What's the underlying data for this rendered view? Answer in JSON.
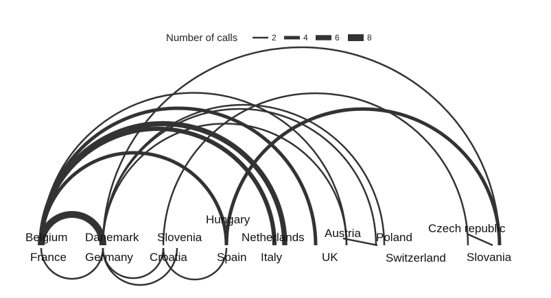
{
  "legend": {
    "title": "Number of calls",
    "entries": [
      {
        "label": "2",
        "calls": 2
      },
      {
        "label": "4",
        "calls": 4
      },
      {
        "label": "6",
        "calls": 6
      },
      {
        "label": "8",
        "calls": 8
      }
    ]
  },
  "nodes": [
    {
      "id": "belgium",
      "label": "Belgium"
    },
    {
      "id": "france",
      "label": "France"
    },
    {
      "id": "danemark",
      "label": "Danemark"
    },
    {
      "id": "germany",
      "label": "Germany"
    },
    {
      "id": "croatia",
      "label": "Croatia"
    },
    {
      "id": "slovenia",
      "label": "Slovenia"
    },
    {
      "id": "hungary",
      "label": "Hungary"
    },
    {
      "id": "spain",
      "label": "Spain"
    },
    {
      "id": "netherlands",
      "label": "Netherlands"
    },
    {
      "id": "italy",
      "label": "Italy"
    },
    {
      "id": "uk",
      "label": "UK"
    },
    {
      "id": "austria",
      "label": "Austria"
    },
    {
      "id": "poland",
      "label": "Poland"
    },
    {
      "id": "switzerland",
      "label": "Switzerland"
    },
    {
      "id": "czech",
      "label": "Czech republic"
    },
    {
      "id": "slovania",
      "label": "Slovania"
    }
  ],
  "links": [
    {
      "source": "belgium",
      "target": "germany",
      "calls": 8
    },
    {
      "source": "belgium",
      "target": "netherlands",
      "calls": 6
    },
    {
      "source": "belgium",
      "target": "italy",
      "calls": 5
    },
    {
      "source": "belgium",
      "target": "spain",
      "calls": 4
    },
    {
      "source": "belgium",
      "target": "uk",
      "calls": 4
    },
    {
      "source": "belgium",
      "target": "austria",
      "calls": 2
    },
    {
      "source": "belgium",
      "target": "danemark",
      "calls": 2
    },
    {
      "source": "france",
      "target": "germany",
      "calls": 2
    },
    {
      "source": "germany",
      "target": "austria",
      "calls": 2
    },
    {
      "source": "germany",
      "target": "switzerland",
      "calls": 2
    },
    {
      "source": "germany",
      "target": "slovania",
      "calls": 2
    },
    {
      "source": "germany",
      "target": "poland",
      "calls": 2
    },
    {
      "source": "germany",
      "target": "croatia",
      "calls": 2
    },
    {
      "source": "germany",
      "target": "slovenia",
      "calls": 2
    },
    {
      "source": "croatia",
      "target": "czech",
      "calls": 2
    },
    {
      "source": "croatia",
      "target": "spain",
      "calls": 2
    },
    {
      "source": "spain",
      "target": "slovania",
      "calls": 4
    },
    {
      "source": "spain",
      "target": "hungary",
      "calls": 2
    },
    {
      "source": "austria",
      "target": "switzerland",
      "calls": 2
    },
    {
      "source": "czech",
      "target": "slovania",
      "calls": 2
    }
  ]
}
